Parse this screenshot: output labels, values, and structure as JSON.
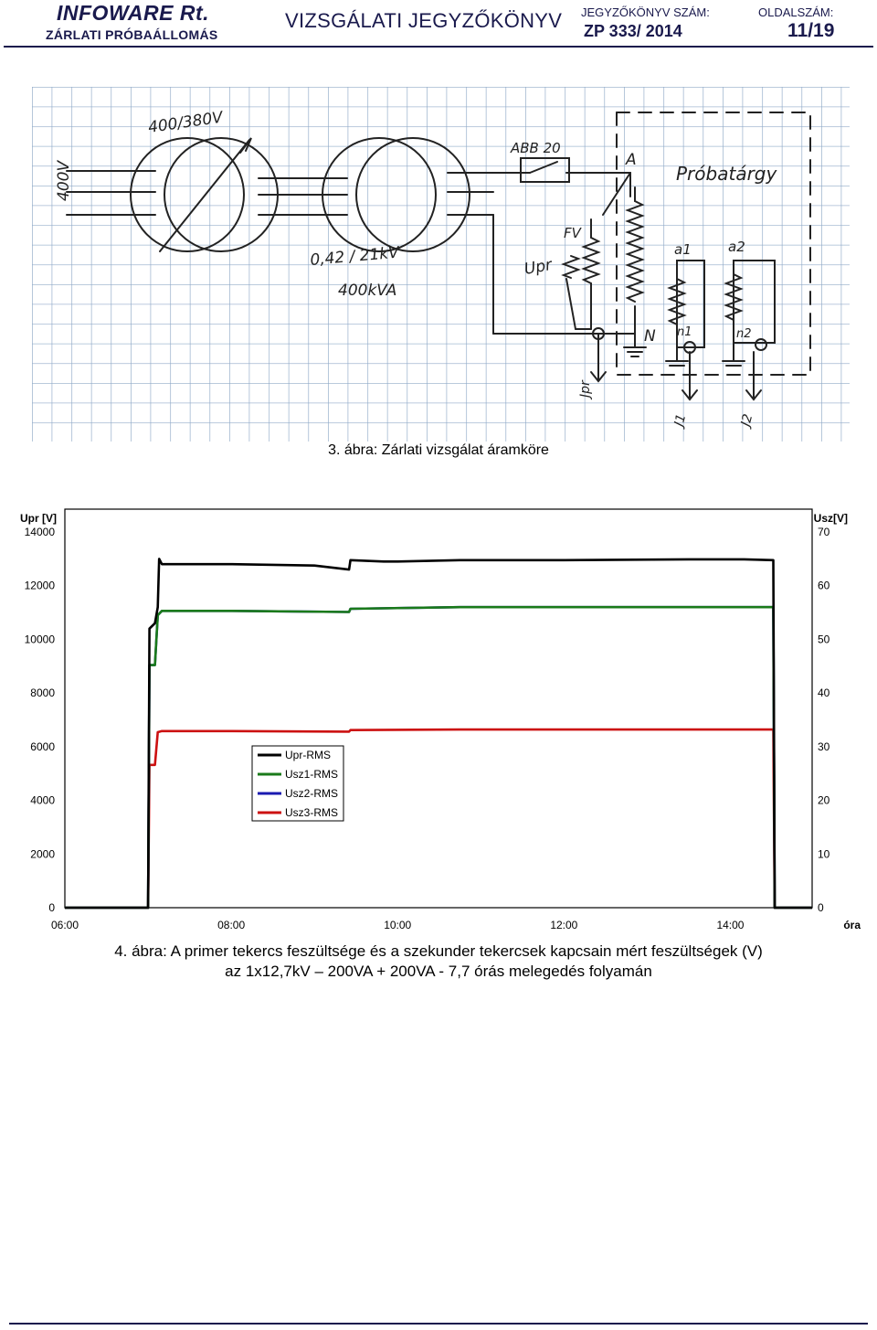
{
  "header": {
    "company": "INFOWARE Rt.",
    "station": "ZÁRLATI PRÓBAÁLLOMÁS",
    "doc_title": "VIZSGÁLATI JEGYZŐKÖNYV",
    "report_number_label": "JEGYZŐKÖNYV SZÁM:",
    "report_number": "ZP 333/ 2014",
    "page_label": "OLDALSZÁM:",
    "page_value": "11/19"
  },
  "figure3": {
    "caption": "3. ábra: Zárlati vizsgálat áramköre",
    "labels": {
      "supply": "400V",
      "reg_rating": "400/380V",
      "tr_ratio": "0,42 / 21kV",
      "tr_power": "400kVA",
      "breaker": "ABB 20",
      "node_a": "A",
      "node_n": "N",
      "fv": "FV",
      "upr": "Upr",
      "jpr": "Jpr",
      "obj": "Próbatárgy",
      "a1": "a1",
      "a2": "a2",
      "n1": "n1",
      "n2": "n2",
      "j1": "J1",
      "j2": "J2"
    }
  },
  "chart_data": {
    "type": "line",
    "left_axis_label": "Upr [V]",
    "right_axis_label": "Usz[V]",
    "x_unit_label": "óra",
    "left_ylim": [
      0,
      14000
    ],
    "left_ticks": [
      "0",
      "2000",
      "4000",
      "6000",
      "8000",
      "10000",
      "12000",
      "14000"
    ],
    "right_ylim": [
      0,
      70
    ],
    "right_ticks": [
      "0",
      "10",
      "20",
      "30",
      "40",
      "50",
      "60",
      "70"
    ],
    "x_range": [
      "06:00",
      "14:59"
    ],
    "x_ticks": [
      "06:00",
      "08:00",
      "10:00",
      "12:00",
      "14:00"
    ],
    "legend_position": "center-left",
    "series": [
      {
        "name": "Upr-RMS",
        "axis": "left",
        "color": "#000000",
        "points": [
          [
            "06:00",
            0
          ],
          [
            "07:00",
            0
          ],
          [
            "07:01",
            10400
          ],
          [
            "07:05",
            10600
          ],
          [
            "07:07",
            11200
          ],
          [
            "07:08",
            13000
          ],
          [
            "07:10",
            12800
          ],
          [
            "08:00",
            12800
          ],
          [
            "09:00",
            12750
          ],
          [
            "09:25",
            12600
          ],
          [
            "09:26",
            12950
          ],
          [
            "09:50",
            12900
          ],
          [
            "10:00",
            12900
          ],
          [
            "10:45",
            12950
          ],
          [
            "12:00",
            12950
          ],
          [
            "13:30",
            12980
          ],
          [
            "14:10",
            12980
          ],
          [
            "14:31",
            12950
          ],
          [
            "14:32",
            0
          ],
          [
            "14:59",
            0
          ]
        ]
      },
      {
        "name": "Usz1-RMS",
        "axis": "right",
        "color": "#1a7a1a",
        "points": [
          [
            "06:00",
            0
          ],
          [
            "07:00",
            0
          ],
          [
            "07:01",
            45200
          ],
          [
            "07:05",
            45200
          ],
          [
            "07:07",
            54500
          ],
          [
            "07:10",
            55300
          ],
          [
            "08:00",
            55300
          ],
          [
            "09:25",
            55100
          ],
          [
            "09:26",
            55700
          ],
          [
            "10:45",
            56000
          ],
          [
            "14:10",
            56000
          ],
          [
            "14:31",
            56000
          ],
          [
            "14:32",
            0
          ],
          [
            "14:59",
            0
          ]
        ]
      },
      {
        "name": "Usz2-RMS",
        "axis": "right",
        "color": "#1a1ab0",
        "points": [
          [
            "06:00",
            0
          ],
          [
            "07:00",
            0
          ],
          [
            "07:01",
            45200
          ],
          [
            "07:05",
            45200
          ],
          [
            "07:07",
            54500
          ],
          [
            "07:10",
            55300
          ],
          [
            "08:00",
            55300
          ],
          [
            "09:25",
            55100
          ],
          [
            "09:26",
            55700
          ],
          [
            "10:45",
            56000
          ],
          [
            "14:10",
            56000
          ],
          [
            "14:31",
            56000
          ],
          [
            "14:32",
            0
          ],
          [
            "14:59",
            0
          ]
        ]
      },
      {
        "name": "Usz3-RMS",
        "axis": "right",
        "color": "#cc1111",
        "points": [
          [
            "06:00",
            0
          ],
          [
            "07:00",
            0
          ],
          [
            "07:01",
            26600
          ],
          [
            "07:05",
            26600
          ],
          [
            "07:07",
            32700
          ],
          [
            "07:10",
            32900
          ],
          [
            "08:00",
            32900
          ],
          [
            "09:25",
            32800
          ],
          [
            "09:26",
            33100
          ],
          [
            "10:45",
            33200
          ],
          [
            "14:10",
            33200
          ],
          [
            "14:31",
            33200
          ],
          [
            "14:32",
            0
          ],
          [
            "14:59",
            0
          ]
        ]
      }
    ]
  },
  "figure4": {
    "caption_line1": "4. ábra: A primer tekercs feszültsége és a szekunder tekercsek kapcsain mért feszültségek (V)",
    "caption_line2": "az 1x12,7kV – 200VA + 200VA - 7,7 órás melegedés folyamán"
  }
}
